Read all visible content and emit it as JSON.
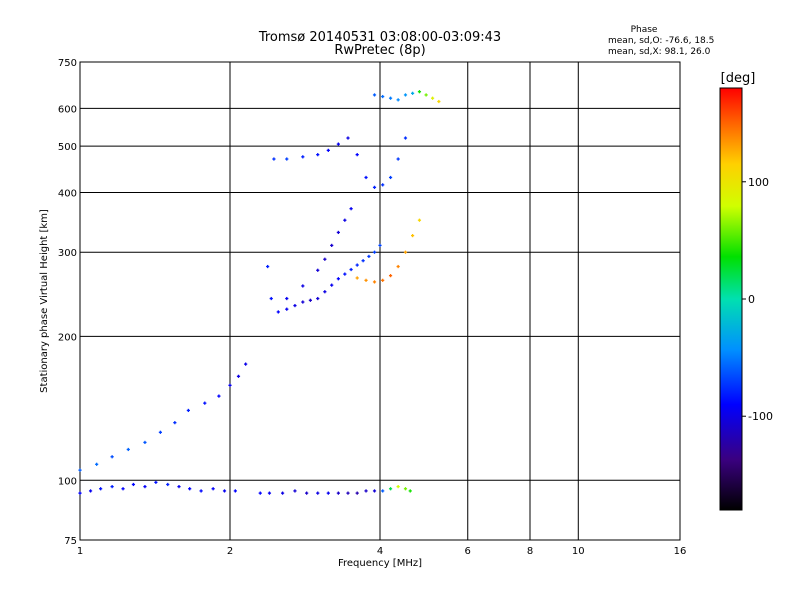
{
  "header": {
    "title_line1": "Tromsø 20140531 03:08:00-03:09:43",
    "title_line2": "RwPretec (8p)",
    "phase_title": "Phase",
    "phase_o": "mean, sd,O: -76.6, 18.5",
    "phase_x": "mean, sd,X:  98.1, 26.0"
  },
  "chart_data": {
    "type": "scatter",
    "title": "Tromsø 20140531 03:08:00-03:09:43",
    "subtitle": "RwPretec (8p)",
    "xlabel": "Frequency [MHz]",
    "ylabel": "Stationary phase Virtual Height [km]",
    "x_scale": "log",
    "y_scale": "log",
    "xlim": [
      1,
      16
    ],
    "ylim": [
      75,
      750
    ],
    "x_ticks": [
      1,
      2,
      4,
      6,
      8,
      10,
      16
    ],
    "x_tick_labels": [
      "1",
      "2",
      "4",
      "6",
      "8",
      "10",
      "16"
    ],
    "y_ticks": [
      75,
      100,
      200,
      300,
      400,
      500,
      600,
      750
    ],
    "y_tick_labels": [
      "75",
      "100",
      "200",
      "300",
      "400",
      "500",
      "600",
      "750"
    ],
    "grid": true,
    "colorbar": {
      "label": "[deg]",
      "range": [
        -180,
        180
      ],
      "ticks": [
        -100,
        0,
        100
      ],
      "tick_labels": [
        "-100",
        "0",
        "100"
      ]
    },
    "series": [
      {
        "name": "",
        "x": [
          1.0,
          1.05,
          1.1,
          1.16,
          1.22,
          1.28,
          1.35,
          1.42,
          1.5,
          1.58,
          1.66,
          1.75,
          1.85,
          1.95,
          2.05
        ],
        "y": [
          94,
          95,
          96,
          97,
          96,
          98,
          97,
          99,
          98,
          97,
          96,
          95,
          96,
          95,
          95
        ],
        "phase": [
          -90,
          -95,
          -85,
          -80,
          -90,
          -88,
          -92,
          -85,
          -80,
          -95,
          -90,
          -88,
          -92,
          -95,
          -90
        ]
      },
      {
        "name": "",
        "x": [
          1.0,
          1.08,
          1.16,
          1.25,
          1.35,
          1.45,
          1.55,
          1.65,
          1.78,
          1.9,
          2.0,
          2.08,
          2.15
        ],
        "y": [
          105,
          108,
          112,
          116,
          120,
          126,
          132,
          140,
          145,
          150,
          158,
          165,
          175
        ],
        "phase": [
          -60,
          -55,
          -65,
          -58,
          -62,
          -70,
          -75,
          -80,
          -85,
          -90,
          -95,
          -100,
          -98
        ]
      },
      {
        "name": "",
        "x": [
          2.3,
          2.4,
          2.55,
          2.7,
          2.85,
          3.0,
          3.15,
          3.3,
          3.45,
          3.6,
          3.75,
          3.9
        ],
        "y": [
          94,
          94,
          94,
          95,
          94,
          94,
          94,
          94,
          94,
          94,
          95,
          95
        ],
        "phase": [
          -90,
          -95,
          -100,
          -105,
          -110,
          -100,
          -95,
          -110,
          -115,
          -120,
          -110,
          -105
        ]
      },
      {
        "name": "",
        "x": [
          4.05,
          4.2,
          4.35,
          4.5,
          4.6
        ],
        "y": [
          95,
          96,
          97,
          96,
          95
        ],
        "phase": [
          -60,
          20,
          80,
          60,
          40
        ]
      },
      {
        "name": "",
        "x": [
          2.38,
          2.42,
          2.5,
          2.6,
          2.7,
          2.8,
          2.9,
          3.0,
          3.1,
          3.2,
          3.3,
          3.4,
          3.5,
          3.6,
          3.7,
          3.8,
          3.9,
          4.0
        ],
        "y": [
          280,
          240,
          225,
          228,
          232,
          236,
          238,
          240,
          248,
          256,
          264,
          270,
          276,
          282,
          288,
          294,
          300,
          310
        ],
        "phase": [
          -80,
          -85,
          -90,
          -95,
          -100,
          -105,
          -110,
          -105,
          -100,
          -95,
          -90,
          -85,
          -80,
          -78,
          -75,
          -72,
          -70,
          -68
        ]
      },
      {
        "name": "",
        "x": [
          2.6,
          2.8,
          3.0,
          3.1,
          3.2,
          3.3,
          3.4,
          3.5
        ],
        "y": [
          240,
          255,
          275,
          290,
          310,
          330,
          350,
          370
        ],
        "phase": [
          -95,
          -100,
          -105,
          -110,
          -108,
          -105,
          -100,
          -95
        ]
      },
      {
        "name": "",
        "x": [
          3.6,
          3.75,
          3.9,
          4.05,
          4.2,
          4.35,
          4.5,
          4.65,
          4.8
        ],
        "y": [
          265,
          262,
          260,
          262,
          268,
          280,
          300,
          325,
          350
        ],
        "phase": [
          130,
          135,
          140,
          145,
          150,
          140,
          130,
          120,
          110
        ]
      },
      {
        "name": "",
        "x": [
          2.45,
          2.6,
          2.8,
          3.0,
          3.15,
          3.3,
          3.45,
          3.6,
          3.75,
          3.9,
          4.05,
          4.2,
          4.35,
          4.5
        ],
        "y": [
          470,
          470,
          475,
          480,
          490,
          505,
          520,
          480,
          430,
          410,
          415,
          430,
          470,
          520
        ],
        "phase": [
          -75,
          -70,
          -80,
          -85,
          -90,
          -95,
          -100,
          -90,
          -85,
          -80,
          -75,
          -70,
          -72,
          -75
        ]
      },
      {
        "name": "",
        "x": [
          3.9,
          4.05,
          4.2,
          4.35,
          4.5,
          4.65,
          4.8,
          4.95,
          5.1,
          5.25
        ],
        "y": [
          640,
          635,
          630,
          625,
          640,
          645,
          650,
          640,
          630,
          620
        ],
        "phase": [
          -60,
          -55,
          -50,
          -45,
          -40,
          -30,
          40,
          60,
          90,
          110
        ]
      }
    ]
  }
}
